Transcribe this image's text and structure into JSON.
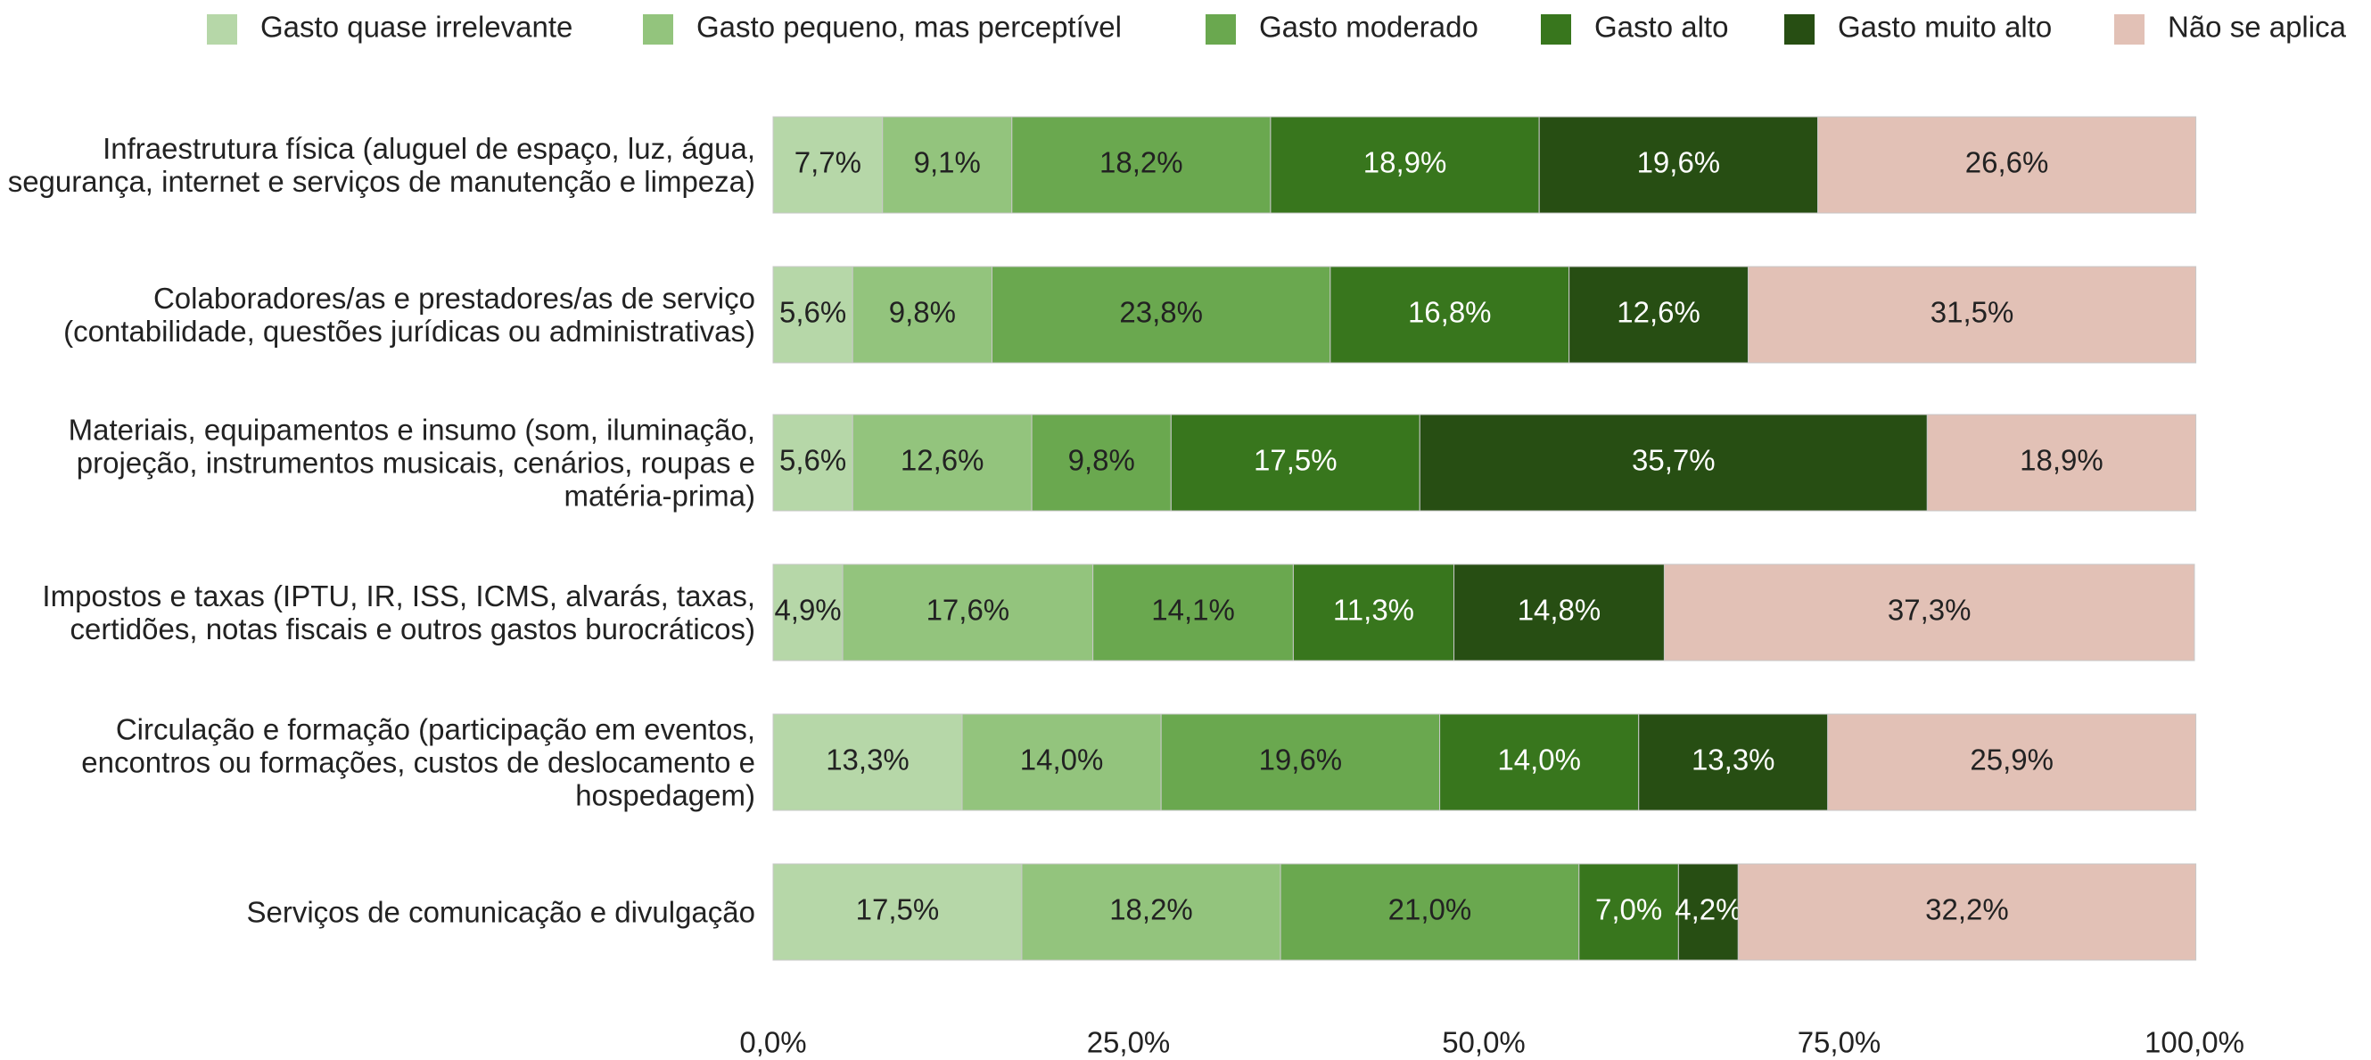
{
  "chart_data": {
    "type": "stacked-bar-horizontal",
    "categories": [
      "Infraestrutura física (aluguel de espaço, luz, água, segurança, internet e serviços de manutenção e limpeza)",
      "Colaboradores/as e prestadores/as de serviço (contabilidade, questões jurídicas ou administrativas)",
      "Materiais, equipamentos e insumo (som, iluminação, projeção, instrumentos musicais, cenários, roupas e matéria-prima)",
      "Impostos e taxas (IPTU, IR, ISS, ICMS,  alvarás, taxas, certidões, notas fiscais  e outros gastos burocráticos)",
      "Circulação e formação (participação em eventos, encontros ou formações, custos de deslocamento e hospedagem)",
      "Serviços de comunicação e divulgação"
    ],
    "series": [
      {
        "name": "Gasto quase irrelevante",
        "color": "#b6d7a8",
        "values": [
          7.7,
          5.6,
          5.6,
          4.9,
          13.3,
          17.5
        ],
        "value_labels": [
          "7,7%",
          "5,6%",
          "5,6%",
          "4,9%",
          "13,3%",
          "17,5%"
        ]
      },
      {
        "name": "Gasto pequeno, mas perceptível",
        "color": "#93c47d",
        "values": [
          9.1,
          9.8,
          12.6,
          17.6,
          14.0,
          18.2
        ],
        "value_labels": [
          "9,1%",
          "9,8%",
          "12,6%",
          "17,6%",
          "14,0%",
          "18,2%"
        ]
      },
      {
        "name": "Gasto moderado",
        "color": "#6aa84f",
        "values": [
          18.2,
          23.8,
          9.8,
          14.1,
          19.6,
          21.0
        ],
        "value_labels": [
          "18,2%",
          "23,8%",
          "9,8%",
          "14,1%",
          "19,6%",
          "21,0%"
        ]
      },
      {
        "name": "Gasto alto",
        "color": "#38761d",
        "values": [
          18.9,
          16.8,
          17.5,
          11.3,
          14.0,
          7.0
        ],
        "value_labels": [
          "18,9%",
          "16,8%",
          "17,5%",
          "11,3%",
          "14,0%",
          "7,0%"
        ]
      },
      {
        "name": "Gasto muito alto",
        "color": "#274e13",
        "values": [
          19.6,
          12.6,
          35.7,
          14.8,
          13.3,
          4.2
        ],
        "value_labels": [
          "19,6%",
          "12,6%",
          "35,7%",
          "14,8%",
          "13,3%",
          "4,2%"
        ]
      },
      {
        "name": "Não se aplica",
        "color": "#e2c1b6",
        "values": [
          26.6,
          31.5,
          18.9,
          37.3,
          25.9,
          32.2
        ],
        "value_labels": [
          "26,6%",
          "31,5%",
          "18,9%",
          "37,3%",
          "25,9%",
          "32,2%"
        ]
      }
    ],
    "xlim": [
      0,
      100
    ],
    "xticks": [
      {
        "value": 0,
        "label": "0,0%"
      },
      {
        "value": 25,
        "label": "25,0%"
      },
      {
        "value": 50,
        "label": "50,0%"
      },
      {
        "value": 75,
        "label": "75,0%"
      },
      {
        "value": 100,
        "label": "100,0%"
      }
    ],
    "legend": "top"
  }
}
